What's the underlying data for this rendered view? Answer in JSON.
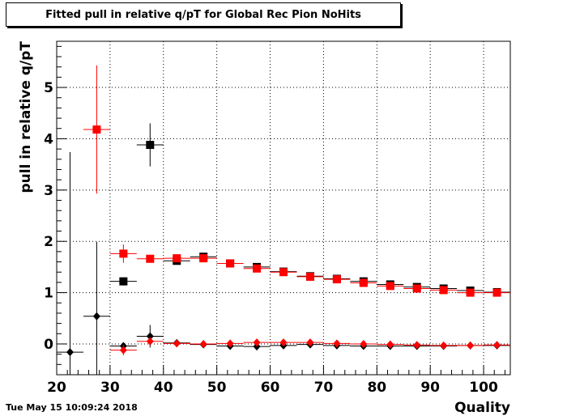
{
  "title": "Fitted pull in relative q/pT for Global Rec Pion NoHits",
  "timestamp": "Tue May 15 10:09:24 2018",
  "chart_data": {
    "type": "scatter",
    "xlabel": "Quality",
    "ylabel": "pull in relative q/pT",
    "xlim": [
      20,
      105
    ],
    "ylim": [
      -0.6,
      5.9
    ],
    "xticks": [
      20,
      30,
      40,
      50,
      60,
      70,
      80,
      90,
      100
    ],
    "yticks": [
      0,
      1,
      2,
      3,
      4,
      5
    ],
    "grid": true,
    "series": [
      {
        "color": "#000000",
        "marker": "square",
        "points": [
          {
            "x": 32.5,
            "y": 1.22,
            "yerr": 0.08,
            "xerr": 2.5
          },
          {
            "x": 37.5,
            "y": 3.88,
            "yerr": 0.42,
            "xerr": 2.5
          },
          {
            "x": 42.5,
            "y": 1.62,
            "yerr": 0.04,
            "xerr": 2.5
          },
          {
            "x": 47.5,
            "y": 1.7,
            "yerr": 0.03,
            "xerr": 2.5
          },
          {
            "x": 52.5,
            "y": 1.57,
            "yerr": 0.02,
            "xerr": 2.5
          },
          {
            "x": 57.5,
            "y": 1.5,
            "yerr": 0.02,
            "xerr": 2.5
          },
          {
            "x": 62.5,
            "y": 1.41,
            "yerr": 0.02,
            "xerr": 2.5
          },
          {
            "x": 67.5,
            "y": 1.32,
            "yerr": 0.02,
            "xerr": 2.5
          },
          {
            "x": 72.5,
            "y": 1.27,
            "yerr": 0.02,
            "xerr": 2.5
          },
          {
            "x": 77.5,
            "y": 1.22,
            "yerr": 0.02,
            "xerr": 2.5
          },
          {
            "x": 82.5,
            "y": 1.16,
            "yerr": 0.02,
            "xerr": 2.5
          },
          {
            "x": 87.5,
            "y": 1.11,
            "yerr": 0.02,
            "xerr": 2.5
          },
          {
            "x": 92.5,
            "y": 1.08,
            "yerr": 0.02,
            "xerr": 2.5
          },
          {
            "x": 97.5,
            "y": 1.04,
            "yerr": 0.02,
            "xerr": 2.5
          },
          {
            "x": 102.5,
            "y": 1.01,
            "yerr": 0.02,
            "xerr": 2.5
          }
        ]
      },
      {
        "color": "#ff0000",
        "marker": "square",
        "points": [
          {
            "x": 27.5,
            "y": 4.18,
            "yerr": 1.25,
            "xerr": 2.5
          },
          {
            "x": 32.5,
            "y": 1.76,
            "yerr": 0.18,
            "xerr": 2.5
          },
          {
            "x": 37.5,
            "y": 1.66,
            "yerr": 0.05,
            "xerr": 2.5
          },
          {
            "x": 42.5,
            "y": 1.67,
            "yerr": 0.03,
            "xerr": 2.5
          },
          {
            "x": 47.5,
            "y": 1.67,
            "yerr": 0.03,
            "xerr": 2.5
          },
          {
            "x": 52.5,
            "y": 1.57,
            "yerr": 0.02,
            "xerr": 2.5
          },
          {
            "x": 57.5,
            "y": 1.47,
            "yerr": 0.02,
            "xerr": 2.5
          },
          {
            "x": 62.5,
            "y": 1.4,
            "yerr": 0.02,
            "xerr": 2.5
          },
          {
            "x": 67.5,
            "y": 1.31,
            "yerr": 0.02,
            "xerr": 2.5
          },
          {
            "x": 72.5,
            "y": 1.26,
            "yerr": 0.02,
            "xerr": 2.5
          },
          {
            "x": 77.5,
            "y": 1.19,
            "yerr": 0.02,
            "xerr": 2.5
          },
          {
            "x": 82.5,
            "y": 1.13,
            "yerr": 0.02,
            "xerr": 2.5
          },
          {
            "x": 87.5,
            "y": 1.08,
            "yerr": 0.02,
            "xerr": 2.5
          },
          {
            "x": 92.5,
            "y": 1.05,
            "yerr": 0.02,
            "xerr": 2.5
          },
          {
            "x": 97.5,
            "y": 1.0,
            "yerr": 0.02,
            "xerr": 2.5
          },
          {
            "x": 102.5,
            "y": 1.0,
            "yerr": 0.02,
            "xerr": 2.5
          }
        ]
      },
      {
        "color": "#000000",
        "marker": "diamond",
        "points": [
          {
            "x": 22.5,
            "y": -0.16,
            "yerr": 3.9,
            "xerr": 2.5
          },
          {
            "x": 27.5,
            "y": 0.54,
            "yerr": 1.45,
            "xerr": 2.5
          },
          {
            "x": 32.5,
            "y": -0.04,
            "yerr": 0.05,
            "xerr": 2.5
          },
          {
            "x": 37.5,
            "y": 0.15,
            "yerr": 0.22,
            "xerr": 2.5
          },
          {
            "x": 42.5,
            "y": 0.02,
            "yerr": 0.03,
            "xerr": 2.5
          },
          {
            "x": 47.5,
            "y": -0.01,
            "yerr": 0.02,
            "xerr": 2.5
          },
          {
            "x": 52.5,
            "y": -0.04,
            "yerr": 0.02,
            "xerr": 2.5
          },
          {
            "x": 57.5,
            "y": -0.05,
            "yerr": 0.02,
            "xerr": 2.5
          },
          {
            "x": 62.5,
            "y": -0.03,
            "yerr": 0.02,
            "xerr": 2.5
          },
          {
            "x": 67.5,
            "y": -0.01,
            "yerr": 0.02,
            "xerr": 2.5
          },
          {
            "x": 72.5,
            "y": -0.03,
            "yerr": 0.02,
            "xerr": 2.5
          },
          {
            "x": 77.5,
            "y": -0.04,
            "yerr": 0.02,
            "xerr": 2.5
          },
          {
            "x": 82.5,
            "y": -0.04,
            "yerr": 0.02,
            "xerr": 2.5
          },
          {
            "x": 87.5,
            "y": -0.04,
            "yerr": 0.02,
            "xerr": 2.5
          },
          {
            "x": 92.5,
            "y": -0.04,
            "yerr": 0.02,
            "xerr": 2.5
          },
          {
            "x": 97.5,
            "y": -0.03,
            "yerr": 0.02,
            "xerr": 2.5
          },
          {
            "x": 102.5,
            "y": -0.03,
            "yerr": 0.02,
            "xerr": 2.5
          }
        ]
      },
      {
        "color": "#ff0000",
        "marker": "diamond",
        "points": [
          {
            "x": 32.5,
            "y": -0.12,
            "yerr": 0.1,
            "xerr": 2.5
          },
          {
            "x": 37.5,
            "y": 0.05,
            "yerr": 0.05,
            "xerr": 2.5
          },
          {
            "x": 42.5,
            "y": 0.01,
            "yerr": 0.03,
            "xerr": 2.5
          },
          {
            "x": 47.5,
            "y": 0.0,
            "yerr": 0.02,
            "xerr": 2.5
          },
          {
            "x": 52.5,
            "y": 0.01,
            "yerr": 0.02,
            "xerr": 2.5
          },
          {
            "x": 57.5,
            "y": 0.03,
            "yerr": 0.02,
            "xerr": 2.5
          },
          {
            "x": 62.5,
            "y": 0.03,
            "yerr": 0.02,
            "xerr": 2.5
          },
          {
            "x": 67.5,
            "y": 0.03,
            "yerr": 0.02,
            "xerr": 2.5
          },
          {
            "x": 72.5,
            "y": 0.01,
            "yerr": 0.02,
            "xerr": 2.5
          },
          {
            "x": 77.5,
            "y": 0.0,
            "yerr": 0.02,
            "xerr": 2.5
          },
          {
            "x": 82.5,
            "y": -0.01,
            "yerr": 0.02,
            "xerr": 2.5
          },
          {
            "x": 87.5,
            "y": -0.02,
            "yerr": 0.02,
            "xerr": 2.5
          },
          {
            "x": 92.5,
            "y": -0.03,
            "yerr": 0.02,
            "xerr": 2.5
          },
          {
            "x": 97.5,
            "y": -0.03,
            "yerr": 0.02,
            "xerr": 2.5
          },
          {
            "x": 102.5,
            "y": -0.02,
            "yerr": 0.02,
            "xerr": 2.5
          }
        ]
      }
    ]
  }
}
